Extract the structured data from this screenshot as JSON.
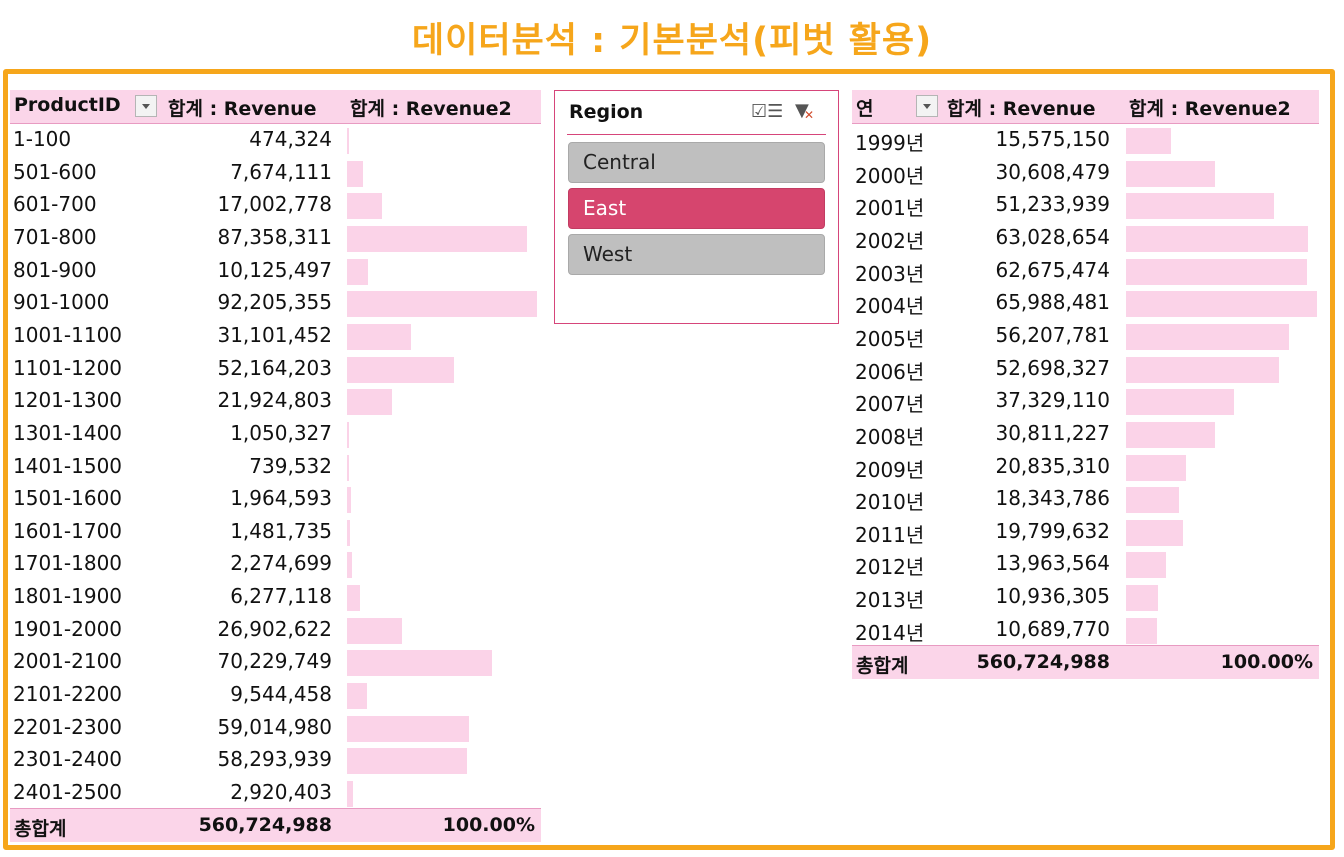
{
  "title": "데이터분석 : 기본분석(피벗 활용)",
  "left_pivot": {
    "col1": "ProductID",
    "col2": "합계 : Revenue",
    "col3": "합계 : Revenue2",
    "rows": [
      {
        "label": "1-100",
        "value": "474,324",
        "pct": 0.51
      },
      {
        "label": "501-600",
        "value": "7,674,111",
        "pct": 8.32
      },
      {
        "label": "601-700",
        "value": "17,002,778",
        "pct": 18.44
      },
      {
        "label": "701-800",
        "value": "87,358,311",
        "pct": 94.74
      },
      {
        "label": "801-900",
        "value": "10,125,497",
        "pct": 10.98
      },
      {
        "label": "901-1000",
        "value": "92,205,355",
        "pct": 100
      },
      {
        "label": "1001-1100",
        "value": "31,101,452",
        "pct": 33.73
      },
      {
        "label": "1101-1200",
        "value": "52,164,203",
        "pct": 56.57
      },
      {
        "label": "1201-1300",
        "value": "21,924,803",
        "pct": 23.78
      },
      {
        "label": "1301-1400",
        "value": "1,050,327",
        "pct": 1.14
      },
      {
        "label": "1401-1500",
        "value": "739,532",
        "pct": 0.8
      },
      {
        "label": "1501-1600",
        "value": "1,964,593",
        "pct": 2.13
      },
      {
        "label": "1601-1700",
        "value": "1,481,735",
        "pct": 1.61
      },
      {
        "label": "1701-1800",
        "value": "2,274,699",
        "pct": 2.47
      },
      {
        "label": "1801-1900",
        "value": "6,277,118",
        "pct": 6.81
      },
      {
        "label": "1901-2000",
        "value": "26,902,622",
        "pct": 29.18
      },
      {
        "label": "2001-2100",
        "value": "70,229,749",
        "pct": 76.17
      },
      {
        "label": "2101-2200",
        "value": "9,544,458",
        "pct": 10.35
      },
      {
        "label": "2201-2300",
        "value": "59,014,980",
        "pct": 64.0
      },
      {
        "label": "2301-2400",
        "value": "58,293,939",
        "pct": 63.22
      },
      {
        "label": "2401-2500",
        "value": "2,920,403",
        "pct": 3.17
      }
    ],
    "total_label": "총합계",
    "total_value": "560,724,988",
    "total_pct": "100.00%"
  },
  "slicer": {
    "title": "Region",
    "multi_select_icon": "multi-select-icon",
    "clear_filter_icon": "clear-filter-icon",
    "items": [
      {
        "label": "Central",
        "selected": false
      },
      {
        "label": "East",
        "selected": true
      },
      {
        "label": "West",
        "selected": false
      }
    ]
  },
  "right_pivot": {
    "col1": "연",
    "col2": "합계 : Revenue",
    "col3": "합계 : Revenue2",
    "rows": [
      {
        "label": "1999년",
        "value": "15,575,150",
        "pct": 23.6
      },
      {
        "label": "2000년",
        "value": "30,608,479",
        "pct": 46.38
      },
      {
        "label": "2001년",
        "value": "51,233,939",
        "pct": 77.64
      },
      {
        "label": "2002년",
        "value": "63,028,654",
        "pct": 95.51
      },
      {
        "label": "2003년",
        "value": "62,675,474",
        "pct": 94.98
      },
      {
        "label": "2004년",
        "value": "65,988,481",
        "pct": 100
      },
      {
        "label": "2005년",
        "value": "56,207,781",
        "pct": 85.18
      },
      {
        "label": "2006년",
        "value": "52,698,327",
        "pct": 79.86
      },
      {
        "label": "2007년",
        "value": "37,329,110",
        "pct": 56.57
      },
      {
        "label": "2008년",
        "value": "30,811,227",
        "pct": 46.69
      },
      {
        "label": "2009년",
        "value": "20,835,310",
        "pct": 31.57
      },
      {
        "label": "2010년",
        "value": "18,343,786",
        "pct": 27.8
      },
      {
        "label": "2011년",
        "value": "19,799,632",
        "pct": 30.0
      },
      {
        "label": "2012년",
        "value": "13,963,564",
        "pct": 21.16
      },
      {
        "label": "2013년",
        "value": "10,936,305",
        "pct": 16.57
      },
      {
        "label": "2014년",
        "value": "10,689,770",
        "pct": 16.2
      }
    ],
    "total_label": "총합계",
    "total_value": "560,724,988",
    "total_pct": "100.00%"
  },
  "colors": {
    "accent": "#f6a61b",
    "header_bg": "#fbd5e9",
    "bar": "#fbd3e8",
    "selected": "#d6456e"
  }
}
